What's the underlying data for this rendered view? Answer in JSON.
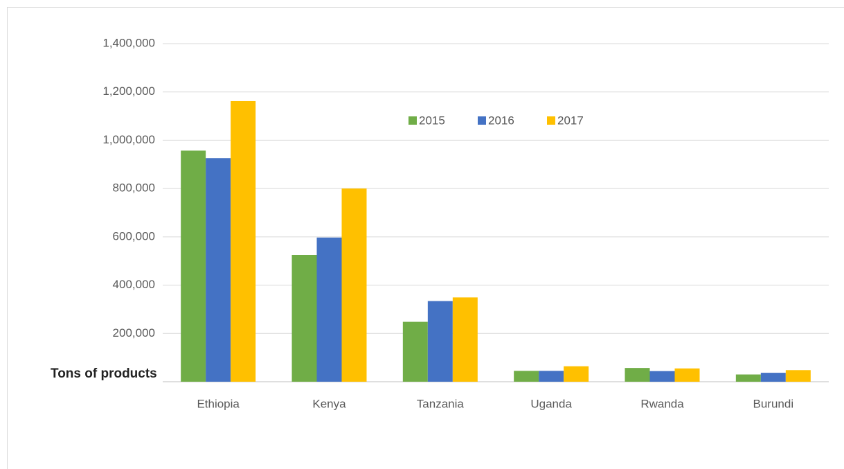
{
  "chart_data": {
    "type": "bar",
    "y_label": "Tons of products",
    "categories": [
      "Ethiopia",
      "Kenya",
      "Tanzania",
      "Uganda",
      "Rwanda",
      "Burundi"
    ],
    "series": [
      {
        "name": "2015",
        "color": "#70ad47",
        "values": [
          957000,
          525000,
          248000,
          45000,
          57000,
          30000
        ]
      },
      {
        "name": "2016",
        "color": "#4472c4",
        "values": [
          926000,
          597000,
          334000,
          45000,
          44000,
          37000
        ]
      },
      {
        "name": "2017",
        "color": "#ffc000",
        "values": [
          1162000,
          800000,
          349000,
          64000,
          55000,
          48000
        ]
      }
    ],
    "ylim": [
      0,
      1400000
    ],
    "yticks": [
      {
        "value": 200000,
        "label": "200,000"
      },
      {
        "value": 400000,
        "label": "400,000"
      },
      {
        "value": 600000,
        "label": "600,000"
      },
      {
        "value": 800000,
        "label": "800,000"
      },
      {
        "value": 1000000,
        "label": "1,000,000"
      },
      {
        "value": 1200000,
        "label": "1,200,000"
      },
      {
        "value": 1400000,
        "label": "1,400,000"
      }
    ],
    "grid": true,
    "legend": "top"
  }
}
